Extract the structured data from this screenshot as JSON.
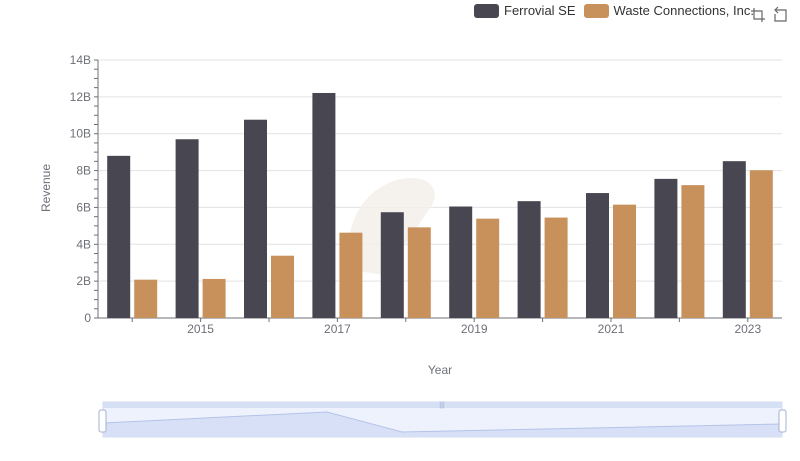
{
  "legend": {
    "items": [
      {
        "label": "Ferrovial SE",
        "color": "#484751"
      },
      {
        "label": "Waste Connections, Inc.",
        "color": "#c8915c"
      }
    ]
  },
  "toolbar": {
    "icons": [
      "zoom-icon",
      "restore-icon"
    ]
  },
  "chart_data": {
    "type": "bar",
    "xlabel": "Year",
    "ylabel": "Revenue",
    "x_tick_labels": [
      "2015",
      "2017",
      "2019",
      "2021",
      "2023"
    ],
    "y_tick_labels": [
      "0",
      "2B",
      "4B",
      "6B",
      "8B",
      "10B",
      "12B",
      "14B"
    ],
    "ylim": [
      0,
      14000000000
    ],
    "categories": [
      "2014",
      "2015",
      "2016",
      "2017",
      "2018",
      "2019",
      "2020",
      "2021",
      "2022",
      "2023"
    ],
    "series": [
      {
        "name": "Ferrovial SE",
        "color": "#484751",
        "values": [
          8800000000,
          9700000000,
          10760000000,
          12210000000,
          5740000000,
          6050000000,
          6340000000,
          6780000000,
          7550000000,
          8510000000
        ]
      },
      {
        "name": "Waste Connections, Inc.",
        "color": "#c8915c",
        "values": [
          2080000000,
          2120000000,
          3380000000,
          4630000000,
          4920000000,
          5390000000,
          5450000000,
          6150000000,
          7210000000,
          8020000000
        ]
      }
    ],
    "grid": true,
    "legend_position": "top-right",
    "data_zoom": {
      "start": 0,
      "end": 100
    }
  }
}
